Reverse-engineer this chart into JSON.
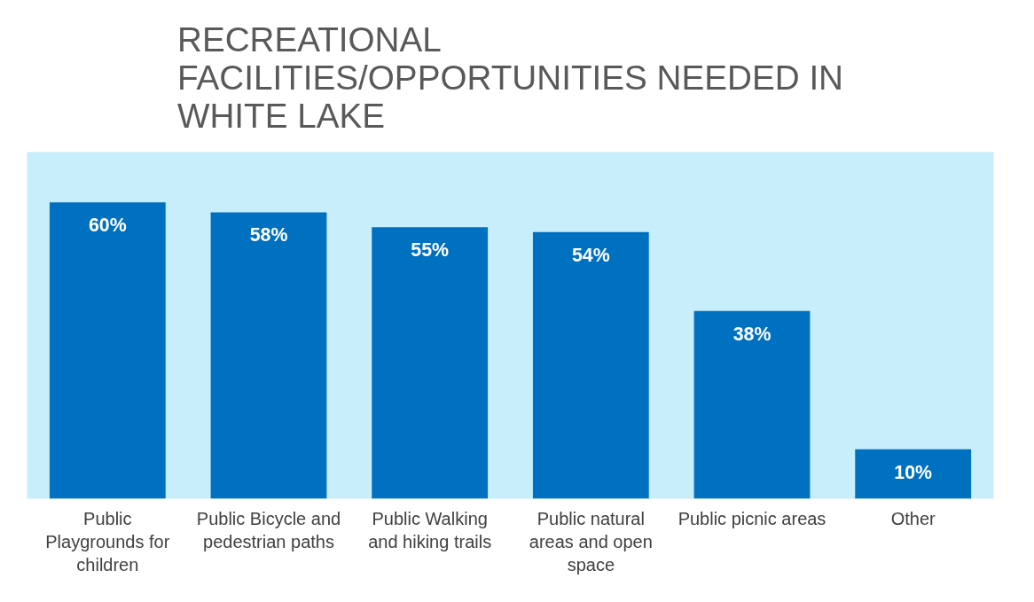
{
  "chart_data": {
    "type": "bar",
    "title": "RECREATIONAL\nFACILITIES/OPPORTUNITIES NEEDED IN\nWHITE LAKE",
    "categories": [
      "Public\nPlaygrounds for\nchildren",
      "Public Bicycle and\npedestrian paths",
      "Public Walking\nand hiking trails",
      "Public natural\nareas and open\nspace",
      "Public picnic areas",
      "Other"
    ],
    "values": [
      60,
      58,
      55,
      54,
      38,
      10
    ],
    "value_labels": [
      "60%",
      "58%",
      "55%",
      "54%",
      "38%",
      "10%"
    ],
    "color": "#0070c0"
  }
}
